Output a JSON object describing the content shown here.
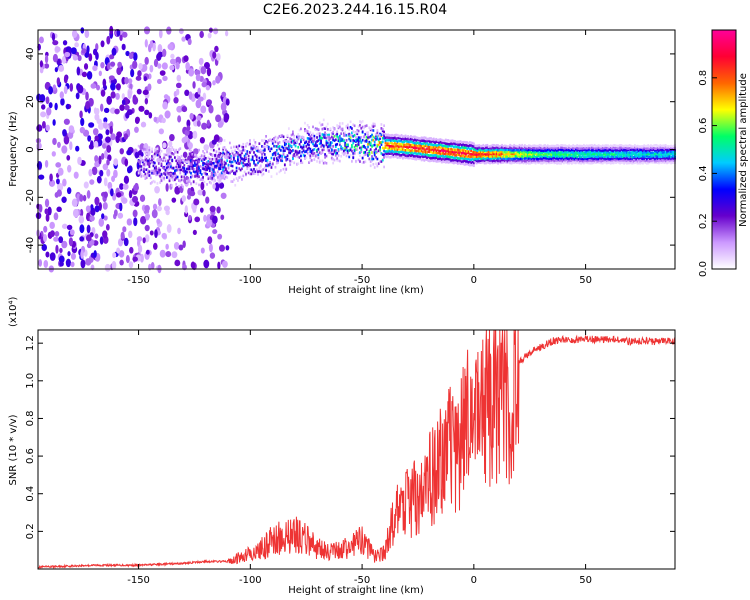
{
  "title": "C2E6.2023.244.16.15.R04",
  "chart_data": [
    {
      "type": "heatmap",
      "xlabel": "Height of straight line (km)",
      "ylabel": "Frequency (Hz)",
      "xlim": [
        -195,
        90
      ],
      "ylim": [
        -50,
        50
      ],
      "xticks": [
        -150,
        -100,
        -50,
        0,
        50
      ],
      "yticks": [
        -40,
        -20,
        0,
        20,
        40
      ],
      "grid": false,
      "colorbar": {
        "label": "Normalized spectral amplitude",
        "range": [
          0,
          1
        ],
        "ticks": [
          0.0,
          0.2,
          0.4,
          0.6,
          0.8
        ],
        "colors": [
          "#ffffff",
          "#cc99ff",
          "#6600cc",
          "#0000ff",
          "#00ccff",
          "#00ff66",
          "#ffff00",
          "#ff6600",
          "#ff0033",
          "#ff0099"
        ]
      },
      "ridge": {
        "points": [
          [
            -150,
            -6
          ],
          [
            -125,
            -8
          ],
          [
            -100,
            -4
          ],
          [
            -75,
            2
          ],
          [
            -55,
            3
          ],
          [
            -45,
            2
          ],
          [
            -30,
            1
          ],
          [
            -20,
            0
          ],
          [
            -10,
            -1
          ],
          [
            0,
            -2
          ],
          [
            20,
            -2
          ],
          [
            50,
            -2
          ],
          [
            90,
            -2
          ]
        ],
        "peak_amplitude": [
          [
            -150,
            0.3
          ],
          [
            -120,
            0.4
          ],
          [
            -90,
            0.45
          ],
          [
            -70,
            0.5
          ],
          [
            -50,
            0.62
          ],
          [
            -40,
            0.85
          ],
          [
            -20,
            0.92
          ],
          [
            0,
            0.92
          ],
          [
            10,
            0.85
          ],
          [
            30,
            0.6
          ],
          [
            60,
            0.55
          ],
          [
            90,
            0.5
          ]
        ]
      }
    },
    {
      "type": "line",
      "xlabel": "Height of straight line (km)",
      "ylabel": "SNR (10 * v/v)",
      "scale_label": "(x10⁴)",
      "xlim": [
        -195,
        90
      ],
      "ylim": [
        0,
        1.27
      ],
      "xticks": [
        -150,
        -100,
        -50,
        0,
        50
      ],
      "yticks": [
        0.2,
        0.4,
        0.6,
        0.8,
        1.0,
        1.2
      ],
      "color": "#ee3333",
      "grid": false,
      "series": [
        {
          "x": [
            -195,
            -170,
            -150,
            -130,
            -120,
            -110,
            -100,
            -95,
            -90,
            -85,
            -80,
            -75,
            -70,
            -65,
            -60,
            -55,
            -50,
            -45,
            -40,
            -35,
            -30,
            -25,
            -20,
            -15,
            -10,
            -5,
            0,
            5,
            10,
            15,
            20,
            25,
            30,
            35,
            40,
            50,
            60,
            70,
            80,
            90
          ],
          "values": [
            0.01,
            0.02,
            0.02,
            0.03,
            0.04,
            0.04,
            0.09,
            0.12,
            0.17,
            0.19,
            0.21,
            0.17,
            0.12,
            0.1,
            0.11,
            0.13,
            0.17,
            0.08,
            0.09,
            0.33,
            0.38,
            0.45,
            0.52,
            0.62,
            0.72,
            0.8,
            0.9,
            0.96,
            1.02,
            1.06,
            1.1,
            1.15,
            1.18,
            1.21,
            1.22,
            1.22,
            1.22,
            1.21,
            1.21,
            1.21
          ]
        }
      ]
    }
  ]
}
